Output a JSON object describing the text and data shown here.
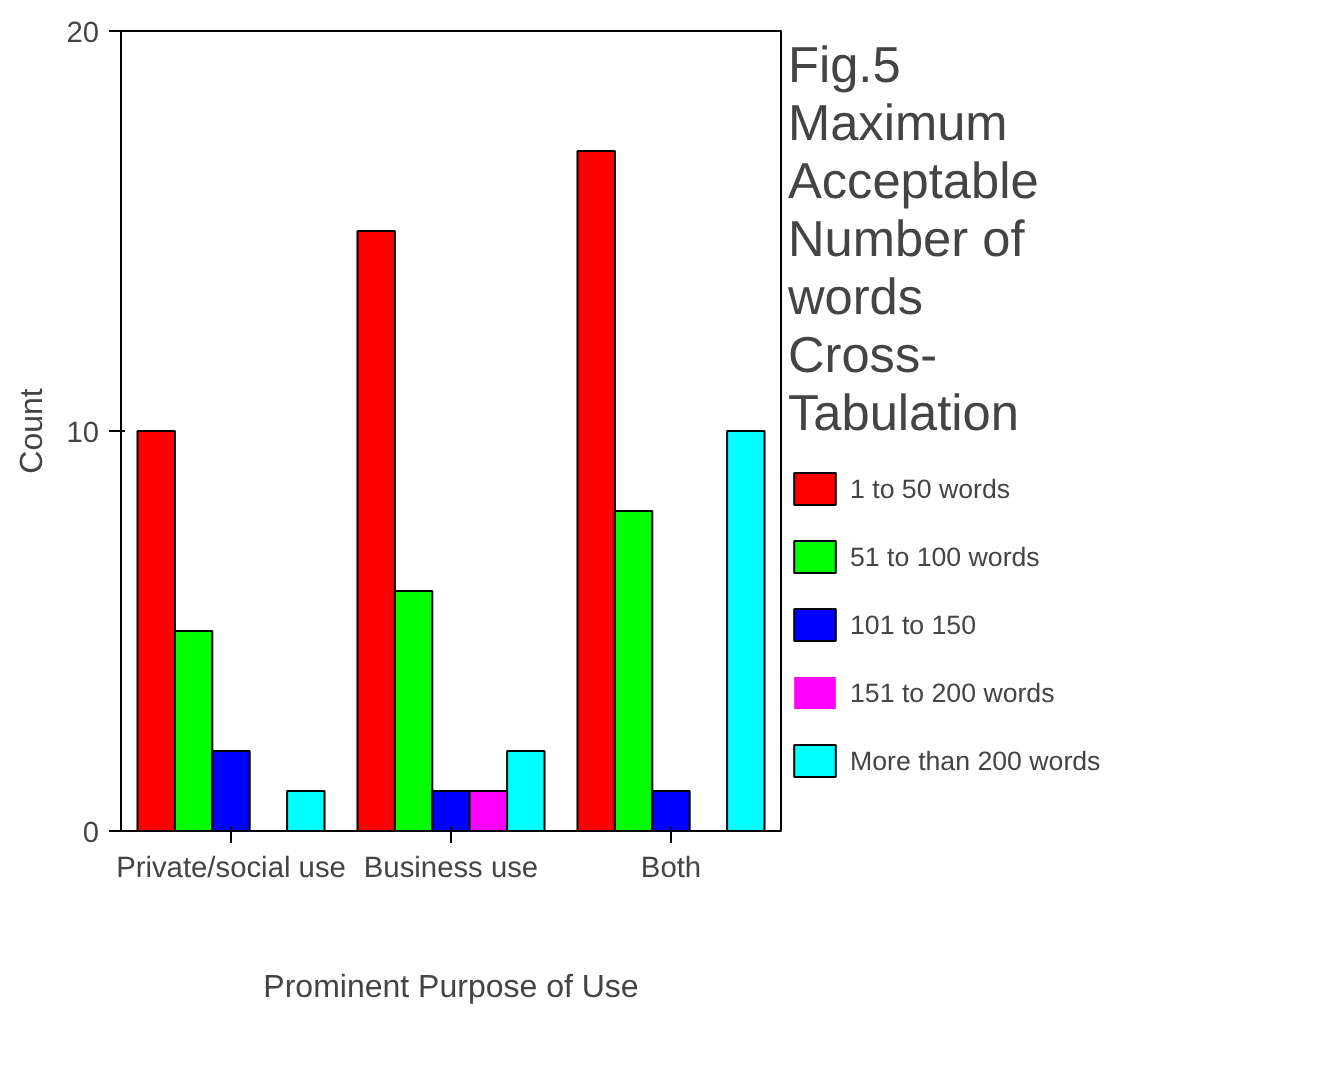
{
  "chart_data": {
    "type": "bar",
    "title": "Fig.5 Maximum Acceptable Number of words Cross-Tabulation",
    "xlabel": "Prominent Purpose of Use",
    "ylabel": "Count",
    "categories": [
      "Private/social use",
      "Business use",
      "Both"
    ],
    "series": [
      {
        "name": "1 to 50 words",
        "color": "#ff0000",
        "values": [
          10,
          15,
          17
        ]
      },
      {
        "name": "51 to 100 words",
        "color": "#00ff00",
        "values": [
          5,
          6,
          8
        ]
      },
      {
        "name": "101 to 150",
        "color": "#0000ff",
        "values": [
          2,
          1,
          1
        ]
      },
      {
        "name": "151 to 200 words",
        "color": "#ff00ff",
        "values": [
          0,
          1,
          0
        ]
      },
      {
        "name": "More than 200 words",
        "color": "#00ffff",
        "values": [
          1,
          2,
          10
        ]
      }
    ],
    "ylim": [
      0,
      20
    ],
    "yticks": [
      0,
      10,
      20
    ],
    "grid": false,
    "legend": "right"
  }
}
